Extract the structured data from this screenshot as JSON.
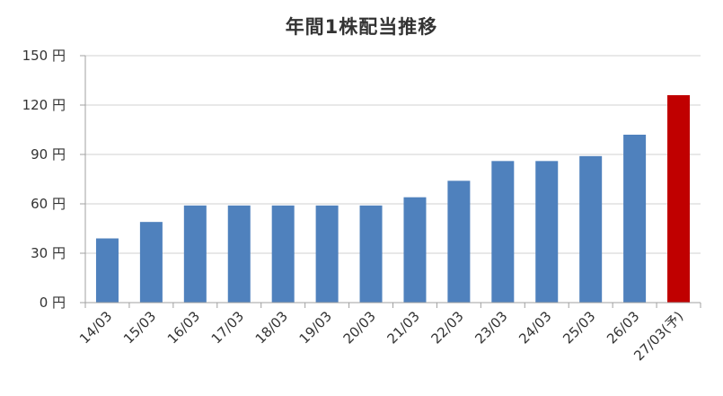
{
  "chart_data": {
    "type": "bar",
    "title": "年間1株配当推移",
    "xlabel": "",
    "ylabel": "",
    "y_unit": "円",
    "ylim": [
      0,
      150
    ],
    "yticks": [
      0,
      30,
      60,
      90,
      120,
      150
    ],
    "grid": true,
    "legend": "none",
    "categories": [
      "14/03",
      "15/03",
      "16/03",
      "17/03",
      "18/03",
      "19/03",
      "20/03",
      "21/03",
      "22/03",
      "23/03",
      "24/03",
      "25/03",
      "26/03",
      "27/03(予)"
    ],
    "values": [
      39,
      49,
      59,
      59,
      59,
      59,
      59,
      64,
      74,
      86,
      86,
      89,
      102,
      126
    ],
    "colors": {
      "actual": "#4f81bd",
      "forecast": "#c00000",
      "grid": "#d0d0d0",
      "axis": "#a0a0a0"
    },
    "forecast_index": 13
  }
}
